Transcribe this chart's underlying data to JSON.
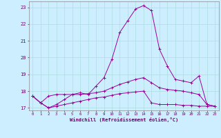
{
  "x_values": [
    0,
    1,
    2,
    3,
    4,
    5,
    6,
    7,
    8,
    9,
    10,
    11,
    12,
    13,
    14,
    15,
    16,
    17,
    18,
    19,
    20,
    21,
    22,
    23
  ],
  "y_main": [
    17.7,
    17.3,
    17.0,
    17.2,
    17.5,
    17.8,
    17.9,
    17.8,
    18.3,
    18.8,
    19.9,
    21.5,
    22.2,
    22.9,
    23.1,
    22.8,
    20.5,
    19.5,
    18.7,
    18.6,
    18.5,
    18.9,
    17.2,
    17.1
  ],
  "y_mid": [
    17.7,
    17.3,
    17.7,
    17.8,
    17.8,
    17.8,
    17.8,
    17.85,
    17.9,
    18.0,
    18.2,
    18.4,
    18.55,
    18.7,
    18.8,
    18.5,
    18.2,
    18.1,
    18.05,
    18.0,
    17.9,
    17.8,
    17.2,
    17.1
  ],
  "y_bot": [
    17.7,
    17.3,
    17.0,
    17.1,
    17.2,
    17.3,
    17.4,
    17.5,
    17.6,
    17.65,
    17.75,
    17.85,
    17.9,
    17.95,
    18.0,
    17.3,
    17.2,
    17.2,
    17.2,
    17.15,
    17.15,
    17.1,
    17.1,
    17.1
  ],
  "line_color": "#990099",
  "bg_color": "#cceeff",
  "grid_color": "#aadddd",
  "ylim": [
    16.85,
    23.35
  ],
  "yticks": [
    17,
    18,
    19,
    20,
    21,
    22,
    23
  ],
  "xlim": [
    -0.5,
    23.5
  ],
  "xlabel": "Windchill (Refroidissement éolien,°C)"
}
